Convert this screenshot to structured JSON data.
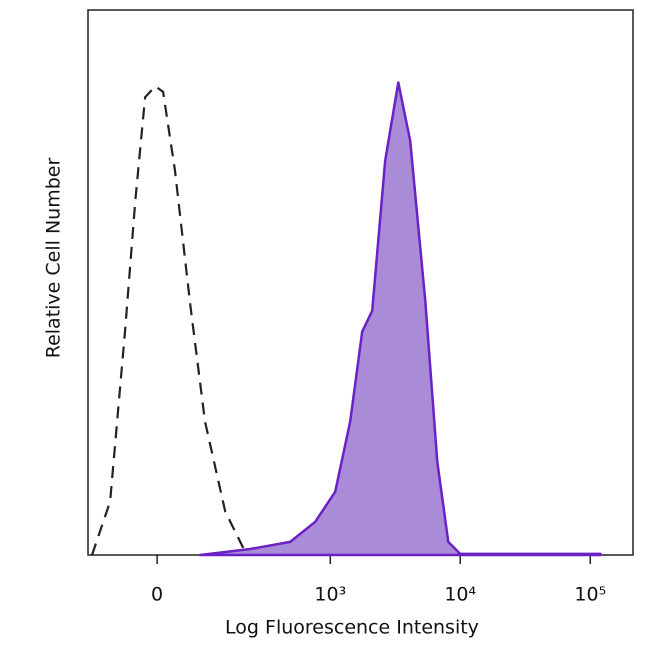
{
  "chart_data": {
    "type": "histogram-overlay",
    "xlabel": "Log Fluorescence Intensity",
    "ylabel": "Relative Cell Number",
    "xscale": "biexponential",
    "xlim": [
      -145,
      213000
    ],
    "ylim": [
      0,
      100
    ],
    "xticks": [
      0,
      {
        "value": 1000,
        "label": "10³"
      },
      {
        "value": 10000,
        "label": "10⁴"
      },
      {
        "value": 100000,
        "label": "10⁵"
      }
    ],
    "series": [
      {
        "color": "#222222",
        "dash": true,
        "fill": null,
        "x": [
          -133,
          -87,
          -56,
          -37,
          -20,
          -3,
          10,
          30,
          58,
          89,
          142,
          212
        ],
        "values": [
          0,
          9.8,
          41,
          65,
          84,
          86,
          85,
          70.5,
          46,
          24.5,
          8,
          0.6
        ]
      },
      {
        "color": "#6a22c4",
        "dash": false,
        "fill": "#a98bd8",
        "x": [
          78,
          234,
          488,
          764,
          1091,
          1425,
          1762,
          2102,
          2650,
          3337,
          4125,
          5390,
          6660,
          8090,
          10000,
          119800
        ],
        "values": [
          0,
          1.1,
          2.4,
          6.1,
          11.6,
          24.5,
          41,
          44.8,
          72.4,
          86.7,
          76,
          46.6,
          17.1,
          2.4,
          0.2,
          0.2
        ]
      }
    ]
  }
}
